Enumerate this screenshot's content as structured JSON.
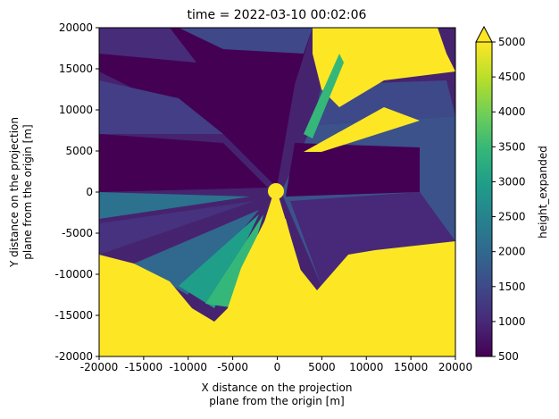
{
  "chart_data": {
    "type": "heatmap",
    "title": "time = 2022-03-10 00:02:06",
    "xlabel": [
      "X distance on the projection",
      "plane from the origin [m]"
    ],
    "ylabel": [
      "Y distance on the projection",
      "plane from the origin [m]"
    ],
    "xlim": [
      -20000,
      20000
    ],
    "ylim": [
      -20000,
      20000
    ],
    "x_ticks": [
      -20000,
      -15000,
      -10000,
      -5000,
      0,
      5000,
      10000,
      15000,
      20000
    ],
    "y_ticks": [
      -20000,
      -15000,
      -10000,
      -5000,
      0,
      5000,
      10000,
      15000,
      20000
    ],
    "colorbar": {
      "label": "height_expanded",
      "range": [
        500,
        5000
      ],
      "extend": "max",
      "ticks": [
        500,
        1000,
        1500,
        2000,
        2500,
        3000,
        3500,
        4000,
        4500,
        5000
      ],
      "colormap": "viridis"
    },
    "grid": false,
    "description_of_field": "radar beam height field: low values (~500-1000) in a central wedge-shaped region, radial streaks of 1000-3500 around the edges, saturated yellow (>=5000) in the bottom region, top-right corner and a narrow beam pointing north-east from the origin"
  },
  "colors": {
    "viridis": [
      "#440154",
      "#482878",
      "#3e4989",
      "#31688e",
      "#26828e",
      "#1f9e89",
      "#35b779",
      "#6ece58",
      "#b5de2b",
      "#fde725"
    ]
  }
}
